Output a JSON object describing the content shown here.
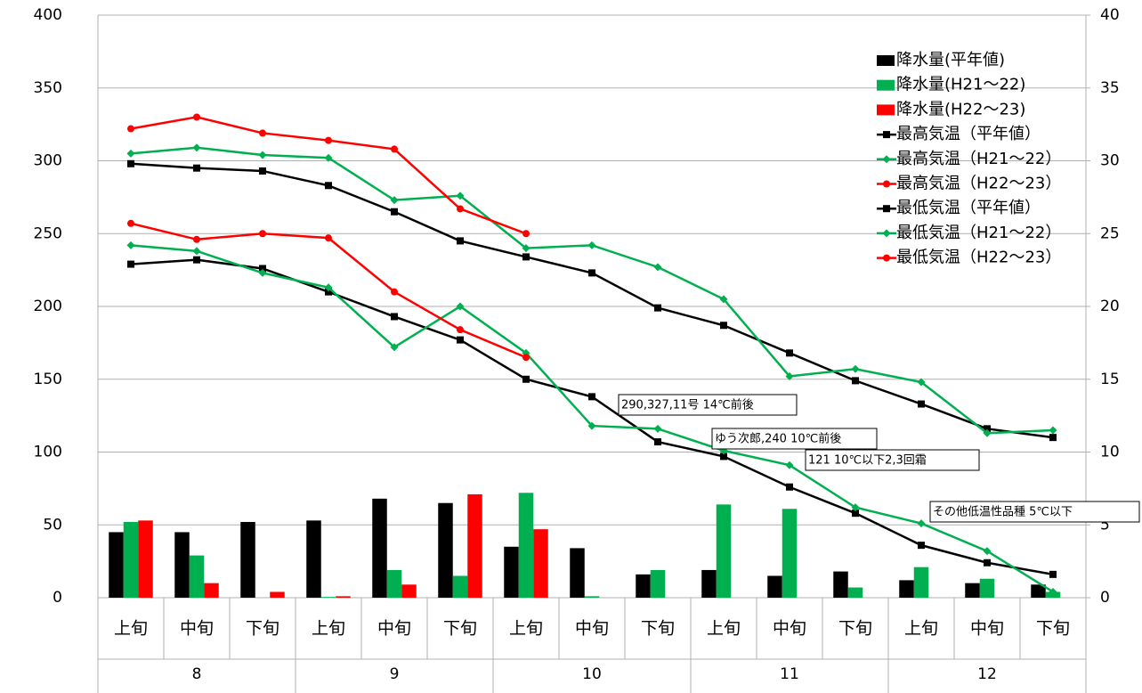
{
  "chart_data": {
    "type": "combo",
    "categories": [
      "上旬",
      "中旬",
      "下旬",
      "上旬",
      "中旬",
      "下旬",
      "上旬",
      "中旬",
      "下旬",
      "上旬",
      "中旬",
      "下旬",
      "上旬",
      "中旬",
      "下旬"
    ],
    "groups": [
      "8",
      "9",
      "10",
      "11",
      "12"
    ],
    "ylim": [
      0,
      400
    ],
    "yticks": [
      0,
      50,
      100,
      150,
      200,
      250,
      300,
      350,
      400
    ],
    "y2lim": [
      0,
      40
    ],
    "y2ticks": [
      0,
      5,
      10,
      15,
      20,
      25,
      30,
      35,
      40
    ],
    "grid": true,
    "legend": "upper right",
    "series": [
      {
        "name": "降水量(平年値)",
        "type": "bar",
        "color": "#000000",
        "values": [
          45,
          45,
          52,
          53,
          68,
          65,
          35,
          34,
          16,
          19,
          15,
          18,
          12,
          10,
          9
        ]
      },
      {
        "name": "降水量(H21～22)",
        "type": "bar",
        "color": "#00b050",
        "values": [
          52,
          29,
          0,
          0.5,
          19,
          15,
          72,
          1,
          19,
          64,
          61,
          7,
          21,
          13,
          4
        ]
      },
      {
        "name": "降水量(H22～23)",
        "type": "bar",
        "color": "#ff0000",
        "values": [
          53,
          10,
          4,
          1,
          9,
          71,
          47,
          null,
          null,
          null,
          null,
          null,
          null,
          null,
          null
        ]
      },
      {
        "name": "最高気温（平年値）",
        "type": "line",
        "axis": "y2",
        "marker": "square",
        "color": "#000000",
        "values": [
          29.8,
          29.5,
          29.3,
          28.3,
          26.5,
          24.5,
          23.4,
          22.3,
          19.9,
          18.7,
          16.8,
          14.9,
          13.3,
          11.6,
          11.0
        ]
      },
      {
        "name": "最高気温（H21～22）",
        "type": "line",
        "axis": "y2",
        "marker": "diamond",
        "color": "#00b050",
        "values": [
          30.5,
          30.9,
          30.4,
          30.2,
          27.3,
          27.6,
          24.0,
          24.2,
          22.7,
          20.5,
          15.2,
          15.7,
          14.8,
          11.3,
          11.5
        ]
      },
      {
        "name": "最高気温（H22～23）",
        "type": "line",
        "axis": "y2",
        "marker": "circle",
        "color": "#ff0000",
        "values": [
          32.2,
          33.0,
          31.9,
          31.4,
          30.8,
          26.7,
          25.0,
          null,
          null,
          null,
          null,
          null,
          null,
          null,
          null
        ]
      },
      {
        "name": "最低気温（平年値）",
        "type": "line",
        "axis": "y2",
        "marker": "square",
        "color": "#000000",
        "values": [
          22.9,
          23.2,
          22.6,
          21.0,
          19.3,
          17.7,
          15.0,
          13.8,
          10.7,
          9.7,
          7.6,
          5.8,
          3.6,
          2.4,
          1.6
        ]
      },
      {
        "name": "最低気温（H21～22）",
        "type": "line",
        "axis": "y2",
        "marker": "diamond",
        "color": "#00b050",
        "values": [
          24.2,
          23.8,
          22.3,
          21.3,
          17.2,
          20.0,
          16.8,
          11.8,
          11.6,
          10.1,
          9.1,
          6.2,
          5.1,
          3.2,
          0.4
        ]
      },
      {
        "name": "最低気温（H22～23）",
        "type": "line",
        "axis": "y2",
        "marker": "circle",
        "color": "#ff0000",
        "values": [
          25.7,
          24.6,
          25.0,
          24.7,
          21.0,
          18.4,
          16.5,
          null,
          null,
          null,
          null,
          null,
          null,
          null,
          null
        ]
      }
    ],
    "annotations": [
      "290,327,11号 14℃前後",
      "ゆう次郎,240 10℃前後",
      "121 10℃以下2,3回霜",
      "その他低温性品種 5℃以下"
    ]
  }
}
